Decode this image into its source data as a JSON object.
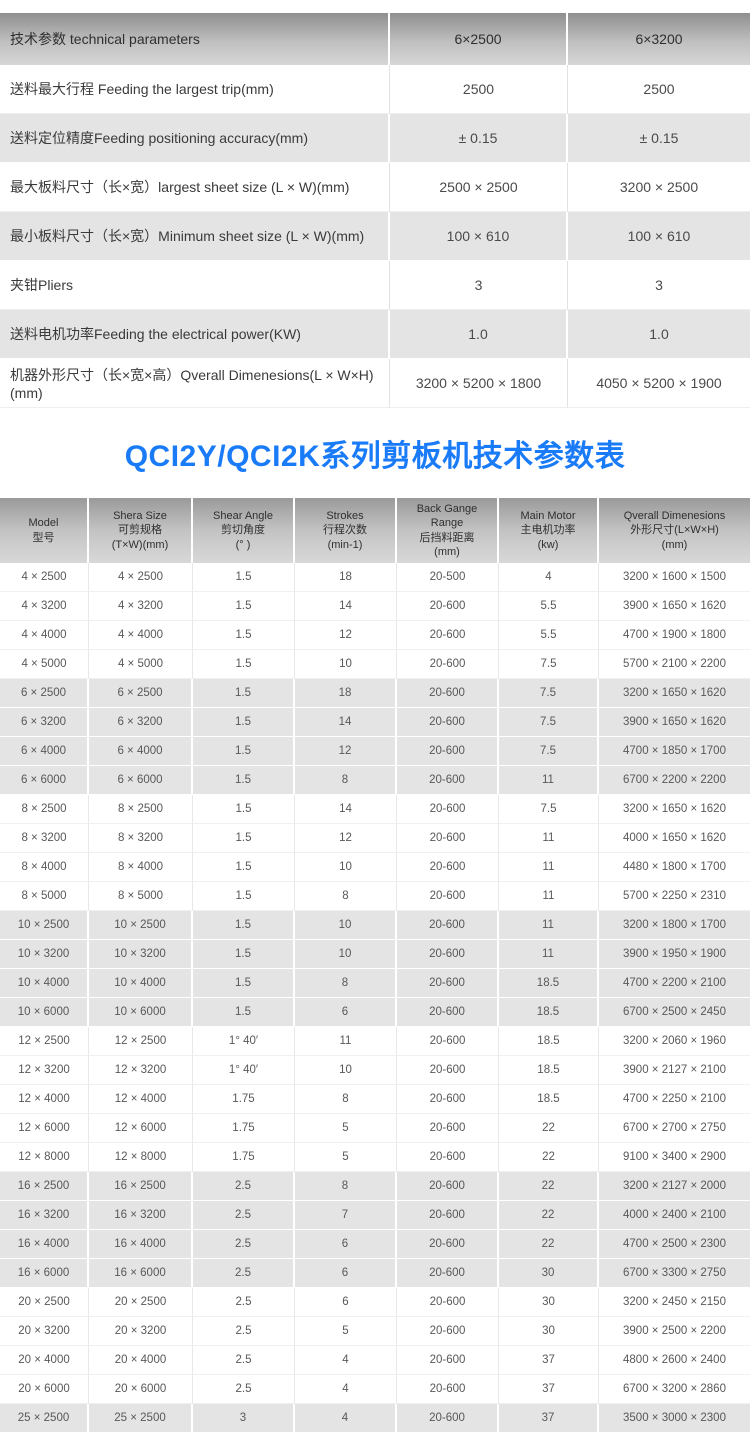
{
  "page": {
    "title_caption": "QCI2Y/QCI2K系列剪板机技术参数表",
    "accent_color": "#1a7bf9"
  },
  "params_table": {
    "headers": [
      "技术参数 technical parameters",
      "6×2500",
      "6×3200"
    ],
    "rows": [
      {
        "cells": [
          "送料最大行程 Feeding the largest trip(mm)",
          "2500",
          "2500"
        ],
        "shaded": false
      },
      {
        "cells": [
          "送料定位精度Feeding positioning accuracy(mm)",
          "± 0.15",
          "± 0.15"
        ],
        "shaded": true
      },
      {
        "cells": [
          "最大板料尺寸（长×宽）largest sheet size (L × W)(mm)",
          "2500 × 2500",
          "3200 × 2500"
        ],
        "shaded": false
      },
      {
        "cells": [
          "最小板料尺寸（长×宽）Minimum sheet size (L × W)(mm)",
          "100 × 610",
          "100 × 610"
        ],
        "shaded": true
      },
      {
        "cells": [
          "夹钳Pliers",
          "3",
          "3"
        ],
        "shaded": false
      },
      {
        "cells": [
          "送料电机功率Feeding the electrical power(KW)",
          "1.0",
          "1.0"
        ],
        "shaded": true
      },
      {
        "cells": [
          "机器外形尺寸（长×宽×高）Qverall Dimenesions(L × W×H)(mm)",
          "3200 × 5200 × 1800",
          "4050 × 5200 × 1900"
        ],
        "shaded": false
      }
    ]
  },
  "spec_table": {
    "headers": [
      "Model\n型号",
      "Shera Size\n可剪规格\n(T×W)(mm)",
      "Shear Angle\n剪切角度\n(°  )",
      "Strokes\n行程次数\n(min-1)",
      "Back Gange\nRange\n后挡料距离\n(mm)",
      "Main Motor\n主电机功率\n(kw)",
      "Qverall Dimenesions\n外形尺寸(L×W×H)\n(mm)"
    ],
    "rows": [
      {
        "cells": [
          "4 × 2500",
          "4 × 2500",
          "1.5",
          "18",
          "20-500",
          "4",
          "3200 × 1600 × 1500"
        ],
        "shaded": false
      },
      {
        "cells": [
          "4 × 3200",
          "4 × 3200",
          "1.5",
          "14",
          "20-600",
          "5.5",
          "3900 × 1650 × 1620"
        ],
        "shaded": false
      },
      {
        "cells": [
          "4 × 4000",
          "4 × 4000",
          "1.5",
          "12",
          "20-600",
          "5.5",
          "4700 × 1900 × 1800"
        ],
        "shaded": false
      },
      {
        "cells": [
          "4 × 5000",
          "4 × 5000",
          "1.5",
          "10",
          "20-600",
          "7.5",
          "5700 × 2100 × 2200"
        ],
        "shaded": false
      },
      {
        "cells": [
          "6 × 2500",
          "6 × 2500",
          "1.5",
          "18",
          "20-600",
          "7.5",
          "3200 × 1650 × 1620"
        ],
        "shaded": true
      },
      {
        "cells": [
          "6 × 3200",
          "6 × 3200",
          "1.5",
          "14",
          "20-600",
          "7.5",
          "3900 × 1650 × 1620"
        ],
        "shaded": true
      },
      {
        "cells": [
          "6 × 4000",
          "6 × 4000",
          "1.5",
          "12",
          "20-600",
          "7.5",
          "4700 × 1850 × 1700"
        ],
        "shaded": true
      },
      {
        "cells": [
          "6 × 6000",
          "6 × 6000",
          "1.5",
          "8",
          "20-600",
          "11",
          "6700 × 2200 × 2200"
        ],
        "shaded": true
      },
      {
        "cells": [
          "8 × 2500",
          "8 × 2500",
          "1.5",
          "14",
          "20-600",
          "7.5",
          "3200 × 1650 × 1620"
        ],
        "shaded": false
      },
      {
        "cells": [
          "8 × 3200",
          "8 × 3200",
          "1.5",
          "12",
          "20-600",
          "11",
          "4000 × 1650 × 1620"
        ],
        "shaded": false
      },
      {
        "cells": [
          "8 × 4000",
          "8 × 4000",
          "1.5",
          "10",
          "20-600",
          "11",
          "4480 × 1800 × 1700"
        ],
        "shaded": false
      },
      {
        "cells": [
          "8 × 5000",
          "8 × 5000",
          "1.5",
          "8",
          "20-600",
          "11",
          "5700 × 2250 × 2310"
        ],
        "shaded": false
      },
      {
        "cells": [
          "10 × 2500",
          "10 × 2500",
          "1.5",
          "10",
          "20-600",
          "11",
          "3200 × 1800 × 1700"
        ],
        "shaded": true
      },
      {
        "cells": [
          "10 × 3200",
          "10 × 3200",
          "1.5",
          "10",
          "20-600",
          "11",
          "3900 × 1950 × 1900"
        ],
        "shaded": true
      },
      {
        "cells": [
          "10 × 4000",
          "10 × 4000",
          "1.5",
          "8",
          "20-600",
          "18.5",
          "4700 × 2200 × 2100"
        ],
        "shaded": true
      },
      {
        "cells": [
          "10 × 6000",
          "10 × 6000",
          "1.5",
          "6",
          "20-600",
          "18.5",
          "6700 × 2500 × 2450"
        ],
        "shaded": true
      },
      {
        "cells": [
          "12 × 2500",
          "12 × 2500",
          "1° 40′",
          "11",
          "20-600",
          "18.5",
          "3200 × 2060 × 1960"
        ],
        "shaded": false
      },
      {
        "cells": [
          "12 × 3200",
          "12 × 3200",
          "1° 40′",
          "10",
          "20-600",
          "18.5",
          "3900 × 2127 × 2100"
        ],
        "shaded": false
      },
      {
        "cells": [
          "12 × 4000",
          "12 × 4000",
          "1.75",
          "8",
          "20-600",
          "18.5",
          "4700 × 2250 × 2100"
        ],
        "shaded": false
      },
      {
        "cells": [
          "12 × 6000",
          "12 × 6000",
          "1.75",
          "5",
          "20-600",
          "22",
          "6700 × 2700 × 2750"
        ],
        "shaded": false
      },
      {
        "cells": [
          "12 × 8000",
          "12 × 8000",
          "1.75",
          "5",
          "20-600",
          "22",
          "9100 × 3400 × 2900"
        ],
        "shaded": false
      },
      {
        "cells": [
          "16 × 2500",
          "16 × 2500",
          "2.5",
          "8",
          "20-600",
          "22",
          "3200 × 2127 × 2000"
        ],
        "shaded": true
      },
      {
        "cells": [
          "16 × 3200",
          "16 × 3200",
          "2.5",
          "7",
          "20-600",
          "22",
          "4000 × 2400 × 2100"
        ],
        "shaded": true
      },
      {
        "cells": [
          "16 × 4000",
          "16 × 4000",
          "2.5",
          "6",
          "20-600",
          "22",
          "4700 × 2500 × 2300"
        ],
        "shaded": true
      },
      {
        "cells": [
          "16 × 6000",
          "16 × 6000",
          "2.5",
          "6",
          "20-600",
          "30",
          "6700 × 3300 × 2750"
        ],
        "shaded": true
      },
      {
        "cells": [
          "20 × 2500",
          "20 × 2500",
          "2.5",
          "6",
          "20-600",
          "30",
          "3200 × 2450 × 2150"
        ],
        "shaded": false
      },
      {
        "cells": [
          "20 × 3200",
          "20 × 3200",
          "2.5",
          "5",
          "20-600",
          "30",
          "3900 × 2500 × 2200"
        ],
        "shaded": false
      },
      {
        "cells": [
          "20 × 4000",
          "20 × 4000",
          "2.5",
          "4",
          "20-600",
          "37",
          "4800 × 2600 × 2400"
        ],
        "shaded": false
      },
      {
        "cells": [
          "20 × 6000",
          "20 × 6000",
          "2.5",
          "4",
          "20-600",
          "37",
          "6700 × 3200 × 2860"
        ],
        "shaded": false
      },
      {
        "cells": [
          "25 × 2500",
          "25 × 2500",
          "3",
          "4",
          "20-600",
          "37",
          "3500 × 3000 × 2300"
        ],
        "shaded": true
      }
    ]
  }
}
